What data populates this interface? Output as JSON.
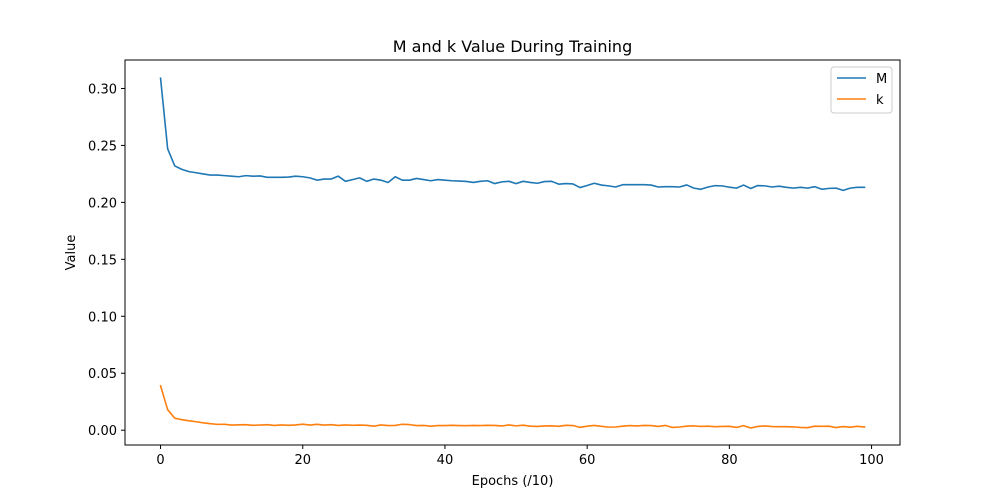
{
  "chart_data": {
    "type": "line",
    "title": "M and k Value During Training",
    "xlabel": "Epochs (/10)",
    "ylabel": "Value",
    "xlim": [
      -5,
      104
    ],
    "ylim": [
      -0.013,
      0.325
    ],
    "xticks": [
      0,
      20,
      40,
      60,
      80,
      100
    ],
    "yticks": [
      0.0,
      0.05,
      0.1,
      0.15,
      0.2,
      0.25,
      0.3
    ],
    "ytick_labels": [
      "0.00",
      "0.05",
      "0.10",
      "0.15",
      "0.20",
      "0.25",
      "0.30"
    ],
    "grid": false,
    "legend": "top-right",
    "x": [
      0,
      1,
      2,
      3,
      4,
      5,
      6,
      7,
      8,
      9,
      10,
      11,
      12,
      13,
      14,
      15,
      16,
      17,
      18,
      19,
      20,
      21,
      22,
      23,
      24,
      25,
      26,
      27,
      28,
      29,
      30,
      31,
      32,
      33,
      34,
      35,
      36,
      37,
      38,
      39,
      40,
      41,
      42,
      43,
      44,
      45,
      46,
      47,
      48,
      49,
      50,
      51,
      52,
      53,
      54,
      55,
      56,
      57,
      58,
      59,
      60,
      61,
      62,
      63,
      64,
      65,
      66,
      67,
      68,
      69,
      70,
      71,
      72,
      73,
      74,
      75,
      76,
      77,
      78,
      79,
      80,
      81,
      82,
      83,
      84,
      85,
      86,
      87,
      88,
      89,
      90,
      91,
      92,
      93,
      94,
      95,
      96,
      97,
      98,
      99
    ],
    "series": [
      {
        "name": "M",
        "color": "#1f77b4",
        "values": [
          0.309,
          0.247,
          0.232,
          0.229,
          0.227,
          0.226,
          0.225,
          0.224,
          0.224,
          0.2235,
          0.223,
          0.2225,
          0.2235,
          0.223,
          0.2232,
          0.222,
          0.222,
          0.222,
          0.2222,
          0.223,
          0.2225,
          0.2215,
          0.2195,
          0.2205,
          0.2205,
          0.223,
          0.2185,
          0.22,
          0.2215,
          0.2185,
          0.2205,
          0.2195,
          0.2175,
          0.2225,
          0.2195,
          0.2195,
          0.221,
          0.22,
          0.219,
          0.22,
          0.2195,
          0.219,
          0.2187,
          0.2184,
          0.2175,
          0.2185,
          0.219,
          0.2165,
          0.218,
          0.2185,
          0.2165,
          0.2185,
          0.2175,
          0.2168,
          0.2183,
          0.2185,
          0.216,
          0.2165,
          0.2162,
          0.213,
          0.2148,
          0.2168,
          0.2152,
          0.2145,
          0.2135,
          0.2155,
          0.2155,
          0.2155,
          0.2155,
          0.2152,
          0.2135,
          0.2138,
          0.2138,
          0.2135,
          0.2153,
          0.2125,
          0.2115,
          0.2135,
          0.2147,
          0.2145,
          0.2133,
          0.2125,
          0.2152,
          0.2122,
          0.2148,
          0.2145,
          0.2135,
          0.2142,
          0.2132,
          0.2125,
          0.2132,
          0.2125,
          0.2138,
          0.2115,
          0.2123,
          0.2125,
          0.2105,
          0.2125,
          0.2132,
          0.2132
        ]
      },
      {
        "name": "k",
        "color": "#ff7f0e",
        "values": [
          0.039,
          0.018,
          0.0105,
          0.0092,
          0.0082,
          0.0074,
          0.0065,
          0.0057,
          0.0051,
          0.0052,
          0.0045,
          0.0047,
          0.0048,
          0.0043,
          0.0045,
          0.0048,
          0.0042,
          0.0046,
          0.0043,
          0.0046,
          0.0053,
          0.0045,
          0.0052,
          0.0045,
          0.0048,
          0.0042,
          0.0046,
          0.0043,
          0.0045,
          0.0043,
          0.0035,
          0.0046,
          0.0041,
          0.0042,
          0.0052,
          0.0049,
          0.0041,
          0.0042,
          0.0035,
          0.0041,
          0.0041,
          0.0043,
          0.0041,
          0.004,
          0.0042,
          0.0041,
          0.0043,
          0.0042,
          0.0037,
          0.0046,
          0.0038,
          0.0044,
          0.0035,
          0.0033,
          0.0037,
          0.0038,
          0.0034,
          0.0043,
          0.0041,
          0.0025,
          0.0035,
          0.0042,
          0.0034,
          0.0027,
          0.0028,
          0.0035,
          0.0041,
          0.0037,
          0.0042,
          0.0041,
          0.0033,
          0.0042,
          0.0024,
          0.0028,
          0.0035,
          0.0038,
          0.0033,
          0.0035,
          0.0031,
          0.0033,
          0.0034,
          0.0024,
          0.004,
          0.0019,
          0.0033,
          0.0037,
          0.0032,
          0.0031,
          0.0031,
          0.0029,
          0.0024,
          0.0022,
          0.0035,
          0.0034,
          0.0035,
          0.0023,
          0.0032,
          0.0026,
          0.0034,
          0.0028
        ]
      }
    ]
  }
}
